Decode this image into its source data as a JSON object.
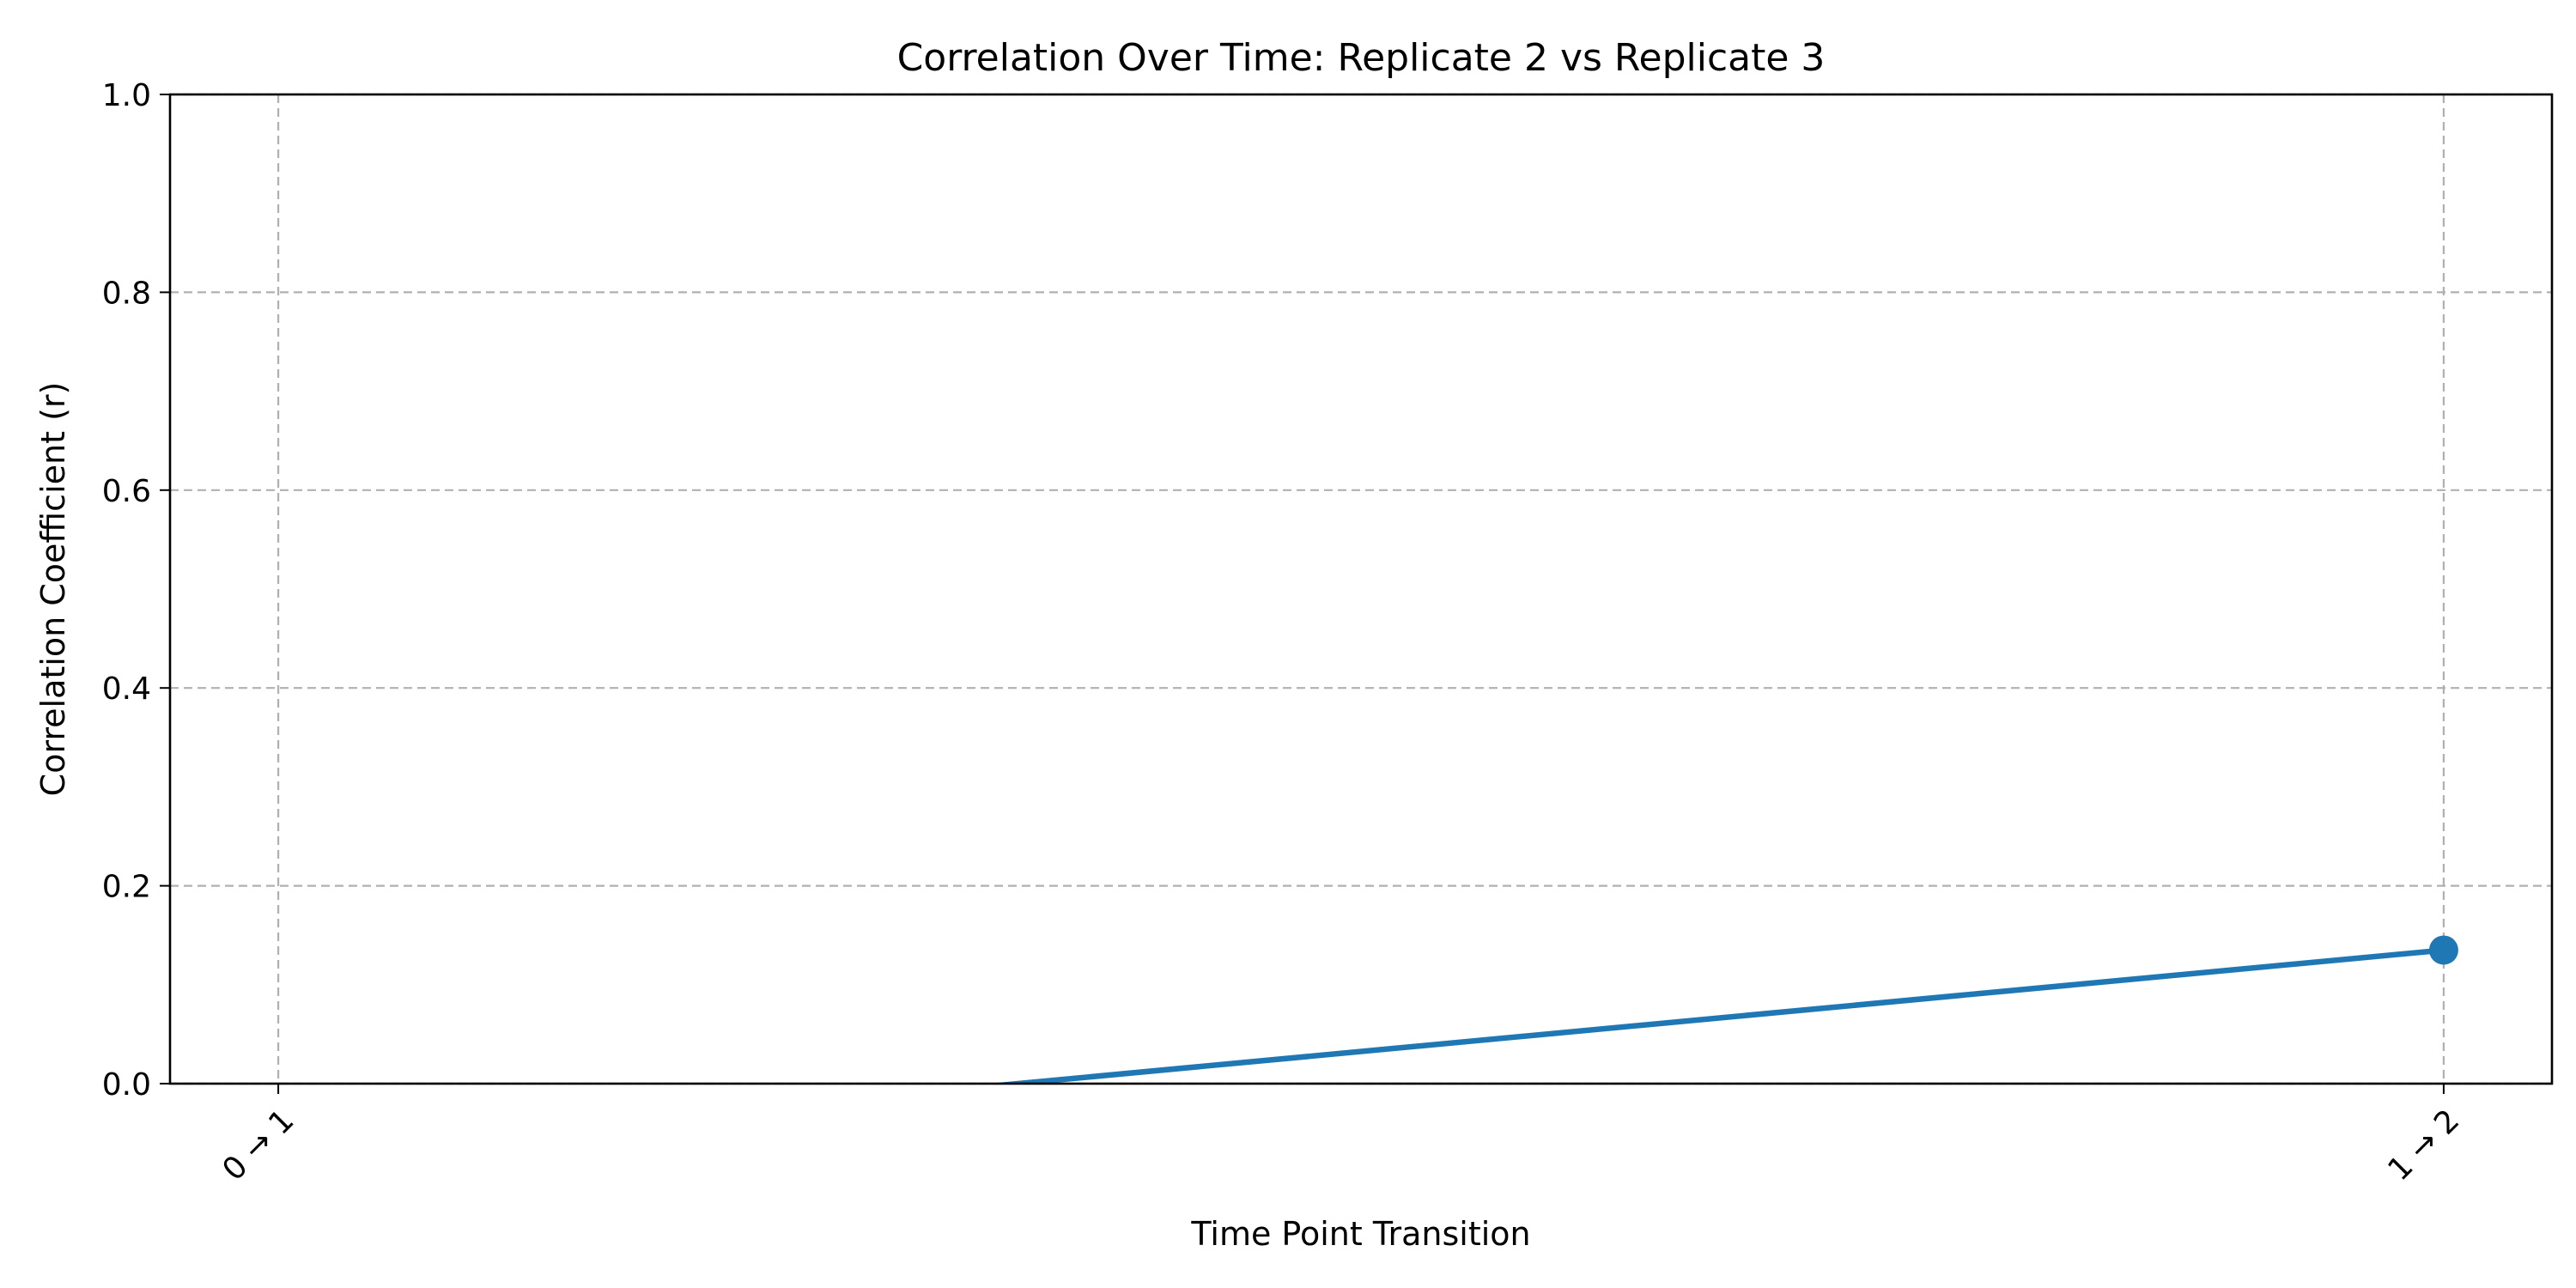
{
  "chart_data": {
    "type": "line",
    "title": "Correlation Over Time: Replicate 2 vs Replicate 3",
    "xlabel": "Time Point Transition",
    "ylabel": "Correlation Coefficient (r)",
    "categories": [
      "0 → 1",
      "1 → 2"
    ],
    "xlim": [
      -0.05,
      1.05
    ],
    "ylim": [
      0.0,
      1.0
    ],
    "yticks": [
      "0.0",
      "0.2",
      "0.4",
      "0.6",
      "0.8",
      "1.0"
    ],
    "grid": true,
    "series": [
      {
        "values": [
          -0.07,
          0.135
        ],
        "color": "#1f77b4",
        "marker": "circle"
      }
    ]
  }
}
